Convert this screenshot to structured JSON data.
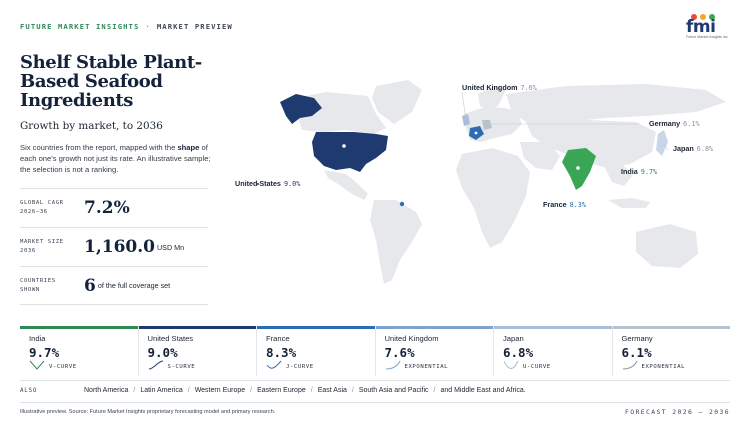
{
  "header": {
    "brand": "FUTURE MARKET INSIGHTS",
    "separator": "·",
    "section": "MARKET PREVIEW"
  },
  "logo": {
    "word": "fmi",
    "tagline": "Future Market Insights Inc.",
    "dot_colors": [
      "#e94b3c",
      "#f5a623",
      "#3aa655",
      "#2f80ed"
    ]
  },
  "title": "Shelf Stable Plant-Based Seafood Ingredients",
  "subtitle": "Growth by market, to 2036",
  "description": {
    "before": "Six countries from the report, mapped with the ",
    "bold": "shape",
    "after": " of each one's growth not just its rate. An illustrative sample; the selection is not a ranking."
  },
  "stats": [
    {
      "label": "GLOBAL CAGR\n2026–36",
      "value": "7.2%",
      "unit": ""
    },
    {
      "label": "MARKET SIZE\n2036",
      "value": "1,160.0",
      "unit": "USD Mn"
    },
    {
      "label": "COUNTRIES\nSHOWN",
      "value": "6",
      "unit": "of the full coverage set"
    }
  ],
  "map": {
    "labels": [
      {
        "country": "United Kingdom",
        "rate": "7.6%",
        "rate_color": "#8a93a0"
      },
      {
        "country": "Germany",
        "rate": "6.1%",
        "rate_color": "#8a93a0"
      },
      {
        "country": "Japan",
        "rate": "6.8%",
        "rate_color": "#8a93a0"
      },
      {
        "country": "India",
        "rate": "9.7%",
        "rate_color": "#2e8b57"
      },
      {
        "country": "France",
        "rate": "8.3%",
        "rate_color": "#2d6cb3"
      },
      {
        "country": "United States",
        "rate": "9.0%",
        "rate_color": "#1f3a6e"
      }
    ],
    "colors": {
      "land": "#e6e8eb",
      "india": "#3aa655",
      "us": "#1f3a6e",
      "uk": "#a9bcd8",
      "france": "#2d6cb3",
      "germany": "#b7c2cf",
      "japan": "#c9d6e8"
    }
  },
  "cards": [
    {
      "name": "India",
      "rate": "9.7%",
      "shape": "V-CURVE",
      "color": "#2e8b57"
    },
    {
      "name": "United States",
      "rate": "9.0%",
      "shape": "S-CURVE",
      "color": "#1f3a6e"
    },
    {
      "name": "France",
      "rate": "8.3%",
      "shape": "J-CURVE",
      "color": "#2d6cb3"
    },
    {
      "name": "United Kingdom",
      "rate": "7.6%",
      "shape": "EXPONENTIAL",
      "color": "#7fa3cf"
    },
    {
      "name": "Japan",
      "rate": "6.8%",
      "shape": "U-CURVE",
      "color": "#a9bcd8"
    },
    {
      "name": "Germany",
      "rate": "6.1%",
      "shape": "EXPONENTIAL",
      "color": "#b7c2cf"
    }
  ],
  "also": {
    "label": "ALSO",
    "items": [
      "North America",
      "Latin America",
      "Western Europe",
      "Eastern Europe",
      "East Asia",
      "South Asia and Pacific",
      "and Middle East and Africa."
    ],
    "separator": "/"
  },
  "footer": {
    "note": "Illustrative preview. Source: Future Market Insights proprietary forecasting model and primary research.",
    "forecast": "FORECAST 2026 – 2036"
  }
}
